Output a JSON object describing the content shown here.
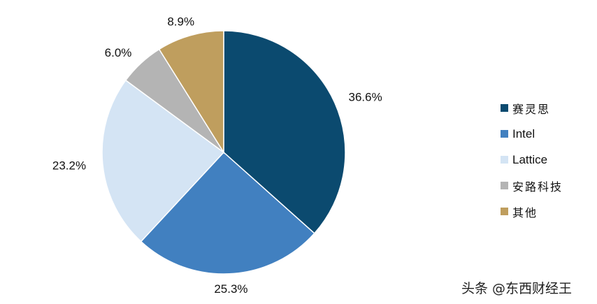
{
  "chart_data": {
    "type": "pie",
    "start": "top, clockwise",
    "legend_position": "right",
    "slices": [
      {
        "name": "赛灵思",
        "value": 36.6,
        "label": "36.6%",
        "color": "#0b4a6f"
      },
      {
        "name": "Intel",
        "value": 25.3,
        "label": "25.3%",
        "color": "#4180c0"
      },
      {
        "name": "Lattice",
        "value": 23.2,
        "label": "23.2%",
        "color": "#d4e4f4"
      },
      {
        "name": "安路科技",
        "value": 6.0,
        "label": "6.0%",
        "color": "#b4b4b4"
      },
      {
        "name": "其他",
        "value": 8.9,
        "label": "8.9%",
        "color": "#bf9e5e"
      }
    ]
  },
  "watermark": "头条 @东西财经王"
}
